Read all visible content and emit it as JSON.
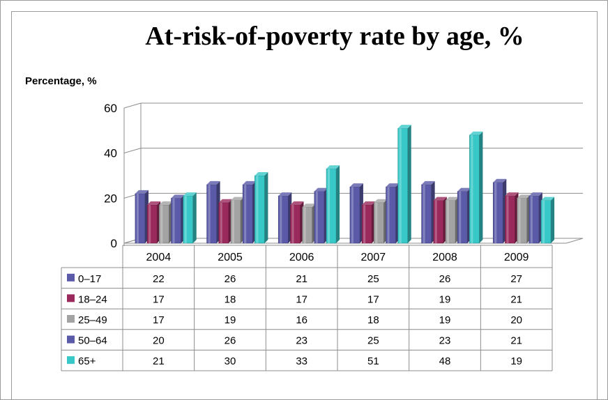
{
  "chart_data": {
    "type": "bar",
    "title": "At-risk-of-poverty rate by age, %",
    "ylabel": "Percentage, %",
    "xlabel": "",
    "ylim": [
      0,
      60
    ],
    "yticks": [
      0,
      20,
      40,
      60
    ],
    "grid": true,
    "categories": [
      "2004",
      "2005",
      "2006",
      "2007",
      "2008",
      "2009"
    ],
    "series": [
      {
        "name": "0–17",
        "color": "#5a5aa8",
        "values": [
          22,
          26,
          21,
          25,
          26,
          27
        ]
      },
      {
        "name": "18–24",
        "color": "#9b2a5c",
        "values": [
          17,
          18,
          17,
          17,
          19,
          21
        ]
      },
      {
        "name": "25–49",
        "color": "#a3a3a3",
        "values": [
          17,
          19,
          16,
          18,
          19,
          20
        ]
      },
      {
        "name": "50–64",
        "color": "#5a5aa8",
        "values": [
          20,
          26,
          23,
          25,
          23,
          21
        ]
      },
      {
        "name": "65+",
        "color": "#39c8c8",
        "values": [
          21,
          30,
          33,
          51,
          48,
          19
        ]
      }
    ],
    "data_table": true
  }
}
